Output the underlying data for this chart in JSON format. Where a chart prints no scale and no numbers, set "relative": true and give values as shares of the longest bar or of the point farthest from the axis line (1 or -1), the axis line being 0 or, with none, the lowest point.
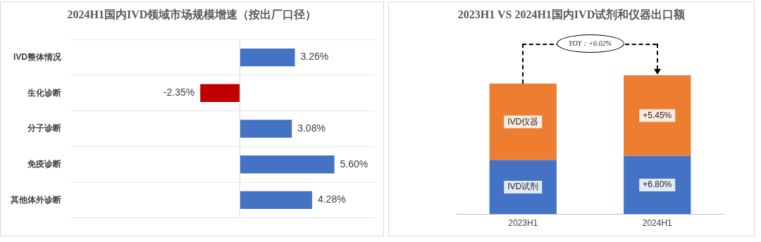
{
  "chart_data": [
    {
      "type": "bar",
      "orientation": "horizontal",
      "title": "2024H1国内IVD领域市场规模增速（按出厂口径）",
      "categories": [
        "IVD整体情况",
        "生化诊断",
        "分子诊断",
        "免疫诊断",
        "其他体外诊断"
      ],
      "values": [
        3.26,
        -2.35,
        3.08,
        5.6,
        4.28
      ],
      "colors": [
        "#4472c4",
        "#c00000",
        "#4472c4",
        "#4472c4",
        "#4472c4"
      ],
      "value_labels": [
        "3.26%",
        "-2.35%",
        "3.08%",
        "5.60%",
        "4.28%"
      ],
      "xlim": [
        -10,
        8
      ],
      "grid": "y",
      "legend": false
    },
    {
      "type": "bar",
      "stacked": true,
      "relative": true,
      "title": "2023H1 VS 2024H1国内IVD试剂和仪器出口额",
      "categories": [
        "2023H1",
        "2024H1"
      ],
      "series": [
        {
          "name": "IVD试剂",
          "color": "#4472c4",
          "values": [
            0.39,
            0.42
          ]
        },
        {
          "name": "IVD仪器",
          "color": "#ed7d31",
          "values": [
            0.55,
            0.58
          ]
        }
      ],
      "annotations": [
        "YOY：+6.02%",
        "+6.80%",
        "+5.45%"
      ],
      "grid": false,
      "legend": false
    }
  ]
}
